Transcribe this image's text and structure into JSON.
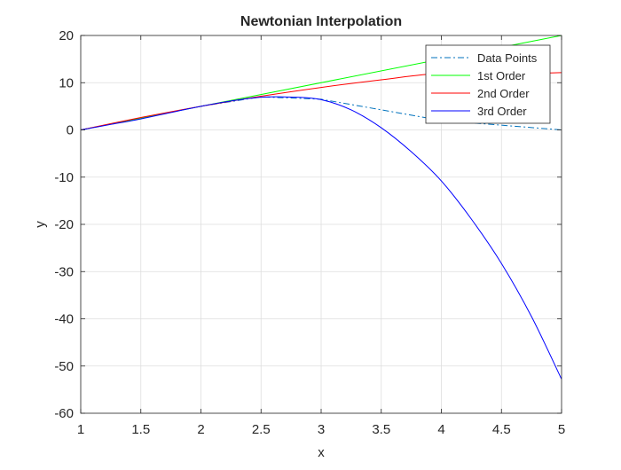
{
  "chart_data": {
    "type": "line",
    "title": "Newtonian Interpolation",
    "xlabel": "x",
    "ylabel": "y",
    "xlim": [
      1,
      5
    ],
    "ylim": [
      -60,
      20
    ],
    "xticks": [
      1,
      1.5,
      2,
      2.5,
      3,
      3.5,
      4,
      4.5,
      5
    ],
    "xtick_labels": [
      "1",
      "1.5",
      "2",
      "2.5",
      "3",
      "3.5",
      "4",
      "4.5",
      "5"
    ],
    "yticks": [
      -60,
      -50,
      -40,
      -30,
      -20,
      -10,
      0,
      10,
      20
    ],
    "ytick_labels": [
      "-60",
      "-50",
      "-40",
      "-30",
      "-20",
      "-10",
      "0",
      "10",
      "20"
    ],
    "grid": true,
    "legend_position": "top-right",
    "series": [
      {
        "name": "Data Points",
        "color": "#0072BD",
        "line_style": "dashdot",
        "x": [
          1,
          2,
          2.5,
          3,
          4,
          5
        ],
        "y": [
          0,
          5,
          7,
          6.5,
          2,
          0
        ]
      },
      {
        "name": "1st Order",
        "color": "#00FF00",
        "line_style": "solid",
        "x": [
          1,
          5
        ],
        "y": [
          0,
          20
        ]
      },
      {
        "name": "2nd Order",
        "color": "#FF0000",
        "line_style": "solid",
        "x": [
          1,
          1.5,
          2,
          2.5,
          3,
          3.5,
          4,
          4.5,
          5
        ],
        "y": [
          0,
          2.62,
          5,
          7.13,
          9,
          10.62,
          11.99,
          11.85,
          12.14
        ]
      },
      {
        "name": "3rd Order",
        "color": "#0000FF",
        "line_style": "solid",
        "x": [
          1,
          1.25,
          1.5,
          1.75,
          2,
          2.25,
          2.5,
          2.75,
          3,
          3.25,
          3.5,
          3.75,
          4,
          4.25,
          4.5,
          4.75,
          5
        ],
        "y": [
          0,
          1.16,
          2.33,
          3.69,
          5,
          6.12,
          6.92,
          6.95,
          6.41,
          4.23,
          0.46,
          -4.63,
          -10.81,
          -18.9,
          -28.28,
          -39.53,
          -52.78
        ]
      }
    ]
  }
}
